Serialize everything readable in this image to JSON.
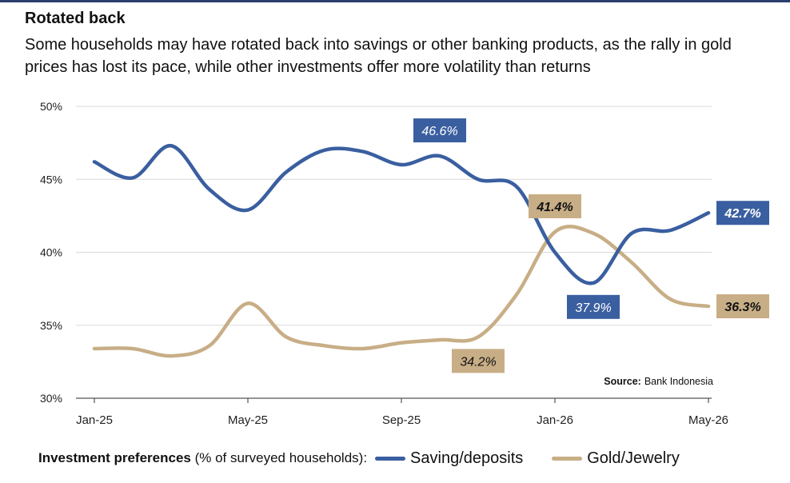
{
  "header": {
    "title": "Rotated back",
    "subtitle": "Some households may have rotated back into savings or other banking products, as the rally in gold prices has lost its pace, while other investments offer more volatility than returns"
  },
  "source": {
    "label": "Source:",
    "text": "Bank Indonesia"
  },
  "legend": {
    "lead_bold": "Investment preferences",
    "lead_rest": " (% of surveyed households):"
  },
  "colors": {
    "saving": "#3a5fa0",
    "gold": "#c8ae86",
    "grid": "#d9d9d9",
    "axis": "#555555"
  },
  "chart_data": {
    "type": "line",
    "x": [
      "Jan-25",
      "Feb-25",
      "Mar-25",
      "Apr-25",
      "May-25",
      "Jun-25",
      "Jul-25",
      "Aug-25",
      "Sep-25",
      "Oct-25",
      "Nov-25",
      "Dec-25",
      "Jan-26",
      "Feb-26",
      "Mar-26",
      "Apr-26",
      "May-26"
    ],
    "x_tick_labels": [
      "Jan-25",
      "May-25",
      "Sep-25",
      "Jan-26",
      "May-26"
    ],
    "y_ticks": [
      30,
      35,
      40,
      45,
      50
    ],
    "y_tick_suffix": "%",
    "ylim": [
      30,
      50
    ],
    "grid": "horizontal",
    "series": [
      {
        "name": "Saving/deposits",
        "key": "saving",
        "values": [
          46.2,
          45.1,
          47.3,
          44.3,
          42.9,
          45.5,
          47.0,
          46.9,
          46.0,
          46.6,
          45.0,
          44.5,
          40.0,
          37.9,
          41.3,
          41.5,
          42.7
        ]
      },
      {
        "name": "Gold/Jewelry",
        "key": "gold",
        "values": [
          33.4,
          33.4,
          32.9,
          33.6,
          36.5,
          34.2,
          33.6,
          33.4,
          33.8,
          34.0,
          34.2,
          37.1,
          41.4,
          41.3,
          39.3,
          36.8,
          36.3
        ]
      }
    ],
    "annotations": [
      {
        "series": "saving",
        "index": 9,
        "text": "46.6%",
        "italic": true,
        "bold": false,
        "pos": "above"
      },
      {
        "series": "saving",
        "index": 13,
        "text": "37.9%",
        "italic": true,
        "bold": false,
        "pos": "below"
      },
      {
        "series": "saving",
        "index": 16,
        "text": "42.7%",
        "italic": true,
        "bold": true,
        "pos": "right"
      },
      {
        "series": "gold",
        "index": 12,
        "text": "41.4%",
        "italic": true,
        "bold": true,
        "pos": "above"
      },
      {
        "series": "gold",
        "index": 10,
        "text": "34.2%",
        "italic": true,
        "bold": false,
        "pos": "below"
      },
      {
        "series": "gold",
        "index": 16,
        "text": "36.3%",
        "italic": true,
        "bold": true,
        "pos": "right"
      }
    ]
  }
}
